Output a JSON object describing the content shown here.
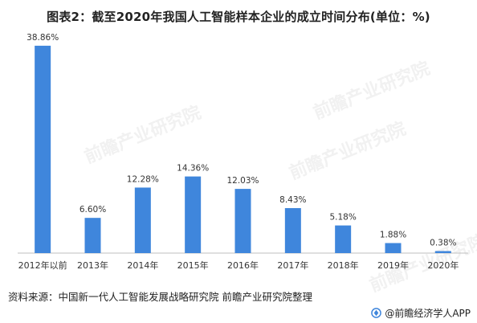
{
  "title": "图表2：截至2020年我国人工智能样本企业的成立时间分布(单位：%)",
  "source": "资料来源：中国新一代人工智能发展战略研究院 前瞻产业研究院整理",
  "brand": "@前瞻经济学人APP",
  "watermark": "前瞻产业研究院",
  "colors": {
    "bar": "#3f86dc",
    "axis": "#bfbfbf",
    "text": "#333333"
  },
  "chart_data": {
    "type": "bar",
    "categories": [
      "2012年以前",
      "2013年",
      "2014年",
      "2015年",
      "2016年",
      "2017年",
      "2018年",
      "2019年",
      "2020年"
    ],
    "values": [
      38.86,
      6.6,
      12.28,
      14.36,
      12.03,
      8.43,
      5.18,
      1.88,
      0.38
    ],
    "data_labels": [
      "38.86%",
      "6.60%",
      "12.28%",
      "14.36%",
      "12.03%",
      "8.43%",
      "5.18%",
      "1.88%",
      "0.38%"
    ],
    "ylim": [
      0,
      40
    ],
    "grid": false,
    "legend": "none"
  }
}
